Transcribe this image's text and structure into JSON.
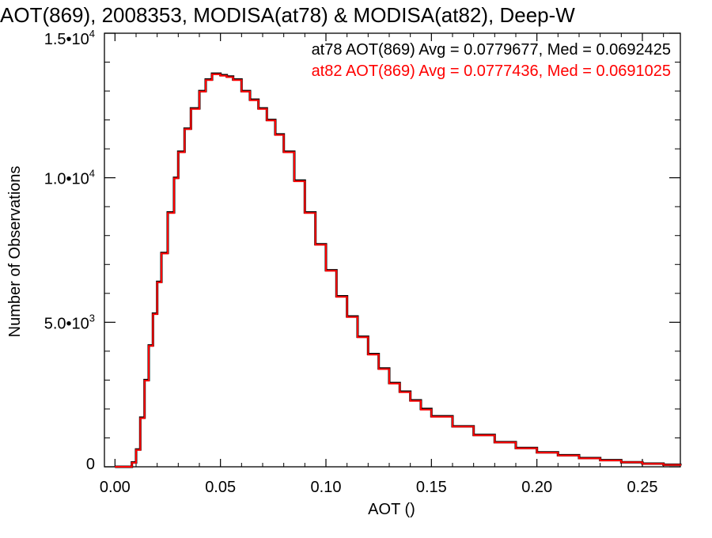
{
  "chart_data": {
    "type": "line",
    "title": "AOT(869), 2008353, MODISA(at78) & MODISA(at82), Deep-W",
    "xlabel": "AOT ()",
    "ylabel": "Number of Observations",
    "xlim": [
      -0.005,
      0.268
    ],
    "ylim": [
      0,
      15000
    ],
    "x_ticks": [
      {
        "value": 0.0,
        "label": "0.00"
      },
      {
        "value": 0.05,
        "label": "0.05"
      },
      {
        "value": 0.1,
        "label": "0.10"
      },
      {
        "value": 0.15,
        "label": "0.15"
      },
      {
        "value": 0.2,
        "label": "0.20"
      },
      {
        "value": 0.25,
        "label": "0.25"
      }
    ],
    "y_ticks": [
      {
        "value": 0,
        "mantissa": "0",
        "exponent": ""
      },
      {
        "value": 5000,
        "mantissa": "5.0•10",
        "exponent": "3"
      },
      {
        "value": 10000,
        "mantissa": "1.0•10",
        "exponent": "4"
      },
      {
        "value": 15000,
        "mantissa": "1.5•10",
        "exponent": "4"
      }
    ],
    "grid": false,
    "legend_position": "top-right",
    "x": [
      0.0,
      0.005,
      0.008,
      0.01,
      0.012,
      0.014,
      0.016,
      0.018,
      0.02,
      0.022,
      0.025,
      0.028,
      0.03,
      0.033,
      0.036,
      0.04,
      0.043,
      0.046,
      0.048,
      0.05,
      0.053,
      0.056,
      0.06,
      0.064,
      0.068,
      0.072,
      0.076,
      0.08,
      0.085,
      0.09,
      0.095,
      0.1,
      0.105,
      0.11,
      0.115,
      0.12,
      0.125,
      0.13,
      0.135,
      0.14,
      0.145,
      0.15,
      0.16,
      0.17,
      0.18,
      0.19,
      0.2,
      0.21,
      0.22,
      0.23,
      0.24,
      0.25,
      0.26,
      0.268
    ],
    "series": [
      {
        "name": "at78",
        "color": "#000000",
        "values": [
          0,
          0,
          150,
          600,
          1700,
          3000,
          4200,
          5300,
          6400,
          7400,
          8800,
          10000,
          10900,
          11700,
          12400,
          13000,
          13400,
          13600,
          13600,
          13550,
          13500,
          13400,
          13000,
          12700,
          12400,
          12000,
          11500,
          10900,
          9900,
          8800,
          7700,
          6800,
          5900,
          5200,
          4500,
          3900,
          3400,
          2900,
          2600,
          2300,
          2000,
          1750,
          1400,
          1100,
          850,
          650,
          500,
          400,
          300,
          230,
          160,
          110,
          70,
          40
        ]
      },
      {
        "name": "at82",
        "color": "#ff0000",
        "values": [
          0,
          0,
          140,
          580,
          1680,
          2980,
          4180,
          5280,
          6380,
          7380,
          8780,
          9980,
          10880,
          11680,
          12380,
          12980,
          13380,
          13580,
          13580,
          13530,
          13480,
          13380,
          12980,
          12680,
          12380,
          11980,
          11480,
          10880,
          9880,
          8780,
          7680,
          6780,
          5880,
          5180,
          4480,
          3880,
          3380,
          2880,
          2580,
          2280,
          1980,
          1730,
          1390,
          1090,
          840,
          640,
          490,
          390,
          290,
          220,
          155,
          105,
          65,
          38
        ]
      }
    ],
    "legend": [
      {
        "text": "at78 AOT(869) Avg = 0.0779677, Med = 0.0692425",
        "color": "#000000"
      },
      {
        "text": "at82 AOT(869) Avg = 0.0777436, Med = 0.0691025",
        "color": "#ff0000"
      }
    ]
  }
}
